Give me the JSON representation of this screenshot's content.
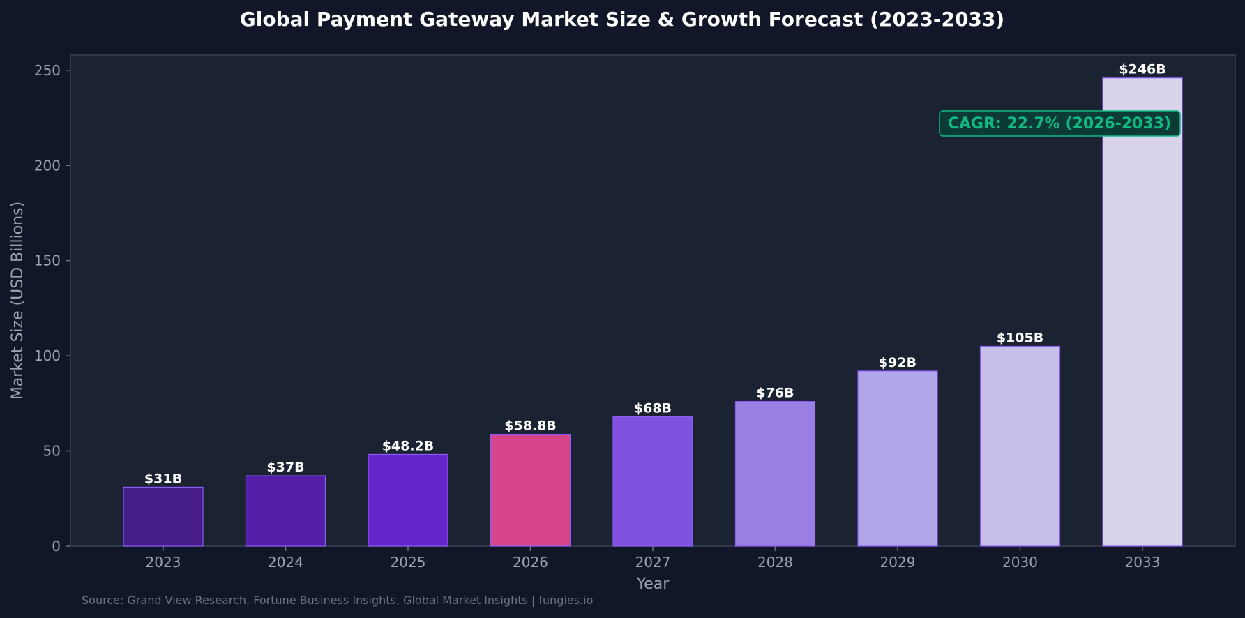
{
  "chart_data": {
    "type": "bar",
    "title": "Global Payment Gateway Market Size & Growth Forecast (2023-2033)",
    "xlabel": "Year",
    "ylabel": "Market Size (USD Billions)",
    "categories": [
      "2023",
      "2024",
      "2025",
      "2026",
      "2027",
      "2028",
      "2029",
      "2030",
      "2033"
    ],
    "values": [
      31,
      37,
      48.2,
      58.8,
      68,
      76,
      92,
      105,
      246
    ],
    "value_labels": [
      "$31B",
      "$37B",
      "$48.2B",
      "$58.8B",
      "$68B",
      "$76B",
      "$92B",
      "$105B",
      "$246B"
    ],
    "bar_colors": [
      "#451c8a",
      "#5520a8",
      "#6325c7",
      "#d6448c",
      "#7f52e0",
      "#9a80e5",
      "#b3a5ea",
      "#c7c0ea",
      "#d9d4ec"
    ],
    "ylim": [
      0,
      258
    ],
    "yticks": [
      0,
      50,
      100,
      150,
      200,
      250
    ],
    "grid": false,
    "annotation": "CAGR: 22.7% (2026-2033)",
    "source": "Source: Grand View Research, Fortune Business Insights, Global Market Insights | fungies.io"
  },
  "colors": {
    "background": "#111729",
    "plot_background": "#1b2333",
    "axis": "#4b5563",
    "bar_edge": "#8b5cf6",
    "accent_green": "#10b981"
  }
}
